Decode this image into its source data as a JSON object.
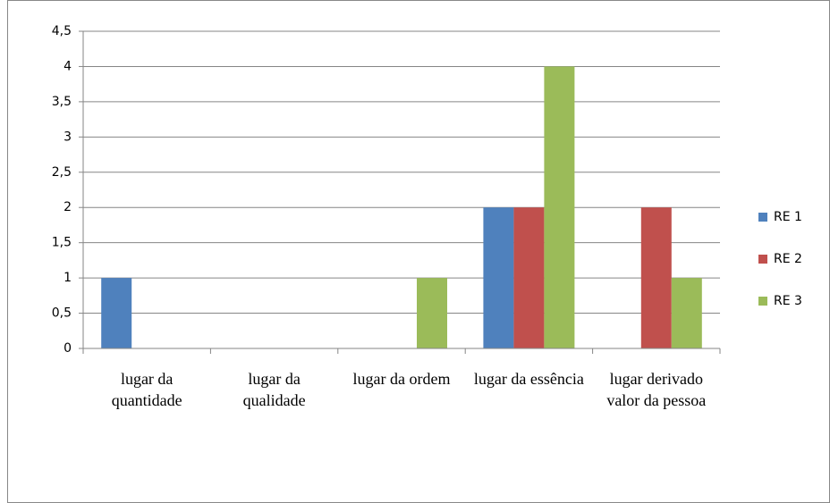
{
  "chart_data": {
    "type": "bar",
    "categories": [
      "lugar da quantidade",
      "lugar da qualidade",
      "lugar da ordem",
      "lugar da essência",
      "lugar derivado valor da pessoa"
    ],
    "series": [
      {
        "name": "RE 1",
        "color": "#4f81bd",
        "values": [
          1,
          0,
          0,
          2,
          0
        ]
      },
      {
        "name": "RE 2",
        "color": "#c0504d",
        "values": [
          0,
          0,
          0,
          2,
          2
        ]
      },
      {
        "name": "RE 3",
        "color": "#9bbb59",
        "values": [
          0,
          0,
          1,
          4,
          1
        ]
      }
    ],
    "ylim": [
      0,
      4.5
    ],
    "yticks": [
      0,
      {
        "value": 0.5,
        "label": "0,5"
      },
      1,
      {
        "value": 1.5,
        "label": "1,5"
      },
      2,
      {
        "value": 2.5,
        "label": "2,5"
      },
      3,
      {
        "value": 3.5,
        "label": "3,5"
      },
      4,
      {
        "value": 4.5,
        "label": "4,5"
      }
    ],
    "grid": true,
    "legend": "right"
  }
}
